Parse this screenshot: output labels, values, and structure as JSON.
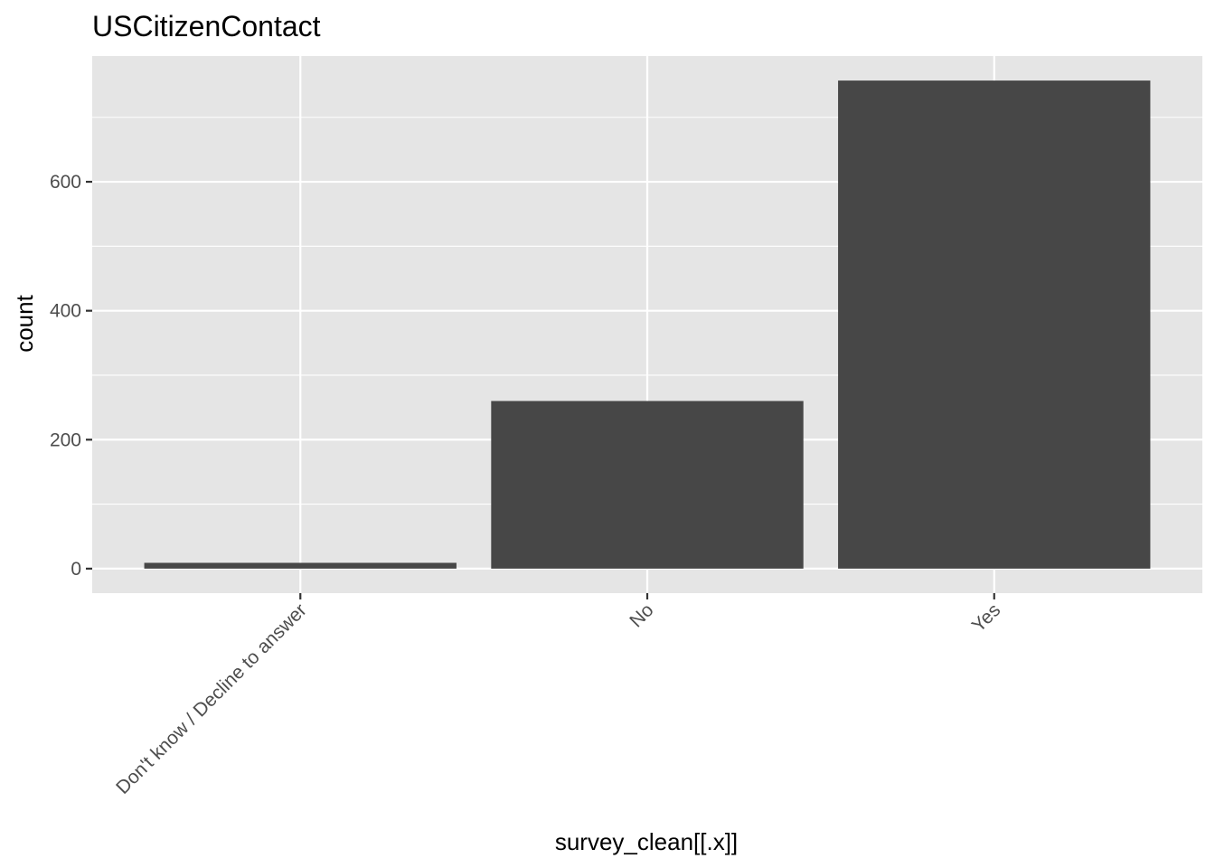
{
  "chart_data": {
    "type": "bar",
    "title": "USCitizenContact",
    "xlabel": "survey_clean[[.x]]",
    "ylabel": "count",
    "categories": [
      "Don't know / Decline to answer",
      "No",
      "Yes"
    ],
    "values": [
      9,
      260,
      757
    ],
    "ylim": [
      -38,
      795
    ],
    "yticks": [
      0,
      200,
      400,
      600
    ],
    "ytick_labels": [
      "0",
      "200",
      "400",
      "600"
    ],
    "grid": true,
    "legend": "none",
    "colors": {
      "bar": "#474747",
      "panel": "#e5e5e5",
      "grid": "#ffffff",
      "tick_text": "#4d4d4d",
      "tick_mark": "#333333"
    }
  }
}
